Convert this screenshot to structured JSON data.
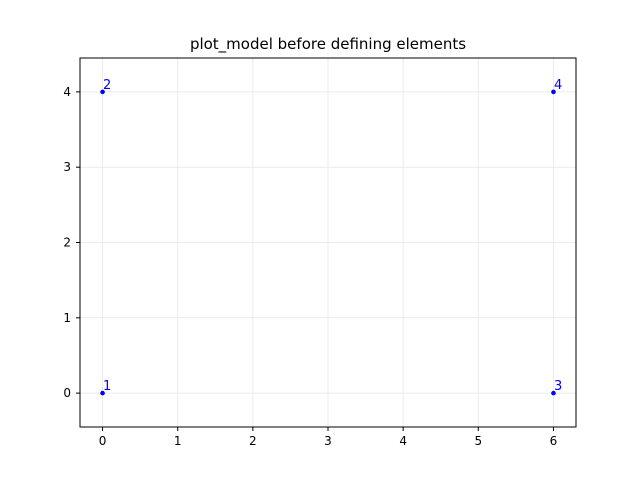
{
  "chart_data": {
    "type": "scatter",
    "title": "plot_model before defining elements",
    "xlabel": "",
    "ylabel": "",
    "xlim": [
      -0.3,
      6.3
    ],
    "ylim": [
      -0.45,
      4.45
    ],
    "x_ticks": [
      0,
      1,
      2,
      3,
      4,
      5,
      6
    ],
    "y_ticks": [
      0,
      1,
      2,
      3,
      4
    ],
    "grid": true,
    "legend": "none",
    "series": [
      {
        "x": [
          0,
          0,
          6,
          6
        ],
        "y": [
          0,
          4,
          0,
          4
        ],
        "point_labels": [
          "1",
          "2",
          "3",
          "4"
        ],
        "color": "#0000ff"
      }
    ]
  },
  "colors": {
    "points": "#0000ff",
    "grid": "#ebebeb",
    "axes": "#000000"
  }
}
